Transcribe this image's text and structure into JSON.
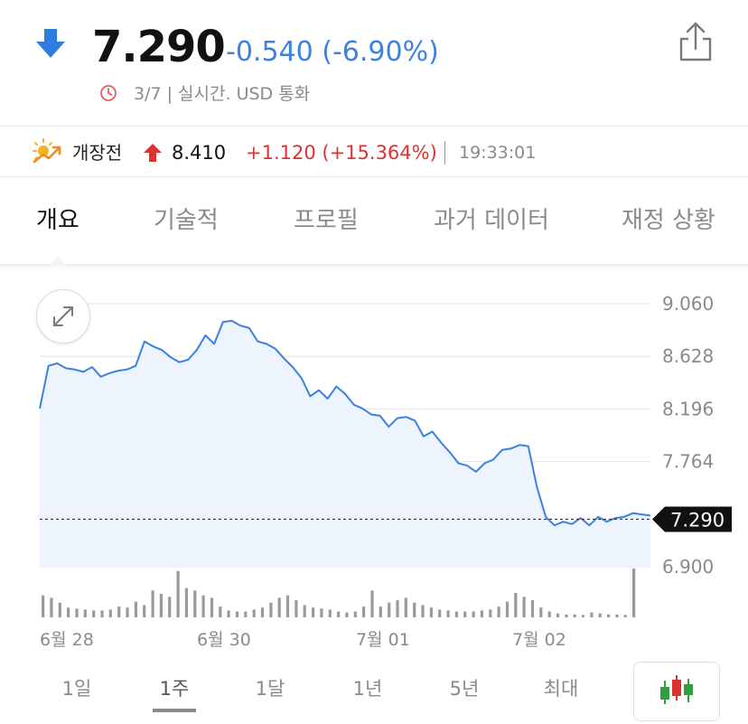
{
  "quote": {
    "price": "7.290",
    "change": "-0.540 (-6.90%)",
    "meta": "3/7 | 실시간. USD 통화",
    "direction_icon": "arrow-down-icon",
    "color_down": "#3b82e0"
  },
  "premarket": {
    "label": "개장전",
    "price": "8.410",
    "change": "+1.120 (+15.364%)",
    "time": "19:33:01",
    "icon": "sunrise-icon",
    "color_up": "#e03131"
  },
  "tabs": [
    {
      "label": "개요",
      "active": true
    },
    {
      "label": "기술적",
      "active": false
    },
    {
      "label": "프로필",
      "active": false
    },
    {
      "label": "과거 데이터",
      "active": false
    },
    {
      "label": "재정 상황",
      "active": false
    }
  ],
  "chart_data": {
    "type": "line",
    "y_ticks": [
      "9.060",
      "8.628",
      "8.196",
      "7.764",
      "6.900"
    ],
    "ylim": [
      6.9,
      9.06
    ],
    "current_value": 7.29,
    "current_label": "7.290",
    "x_labels": [
      "6월 28",
      "6월 30",
      "7월 01",
      "7월 02"
    ],
    "line_color": "#3b82e0",
    "values": [
      8.2,
      8.55,
      8.57,
      8.53,
      8.52,
      8.5,
      8.54,
      8.46,
      8.49,
      8.51,
      8.52,
      8.55,
      8.75,
      8.71,
      8.68,
      8.62,
      8.58,
      8.6,
      8.68,
      8.8,
      8.73,
      8.91,
      8.92,
      8.88,
      8.86,
      8.75,
      8.73,
      8.69,
      8.61,
      8.54,
      8.45,
      8.3,
      8.35,
      8.28,
      8.38,
      8.32,
      8.23,
      8.2,
      8.15,
      8.14,
      8.05,
      8.12,
      8.13,
      8.1,
      7.97,
      8.01,
      7.92,
      7.84,
      7.75,
      7.73,
      7.68,
      7.75,
      7.78,
      7.86,
      7.87,
      7.9,
      7.89,
      7.55,
      7.31,
      7.24,
      7.27,
      7.25,
      7.3,
      7.24,
      7.31,
      7.27,
      7.3,
      7.31,
      7.34,
      7.33,
      7.32
    ],
    "volume": [
      0.45,
      0.4,
      0.3,
      0.2,
      0.18,
      0.16,
      0.14,
      0.14,
      0.16,
      0.22,
      0.2,
      0.32,
      0.25,
      0.55,
      0.48,
      0.42,
      0.95,
      0.6,
      0.55,
      0.45,
      0.4,
      0.22,
      0.14,
      0.12,
      0.12,
      0.16,
      0.2,
      0.3,
      0.4,
      0.45,
      0.35,
      0.25,
      0.2,
      0.18,
      0.16,
      0.12,
      0.1,
      0.12,
      0.22,
      0.55,
      0.22,
      0.3,
      0.35,
      0.4,
      0.3,
      0.25,
      0.2,
      0.16,
      0.14,
      0.12,
      0.12,
      0.12,
      0.14,
      0.16,
      0.22,
      0.32,
      0.5,
      0.42,
      0.35,
      0.2,
      0.12,
      0.08,
      0.06,
      0.06,
      0.05,
      0.1,
      0.08,
      0.06,
      0.06,
      0.05,
      1.0
    ]
  },
  "ranges": [
    {
      "label": "1일",
      "active": false
    },
    {
      "label": "1주",
      "active": true
    },
    {
      "label": "1달",
      "active": false
    },
    {
      "label": "1년",
      "active": false
    },
    {
      "label": "5년",
      "active": false
    },
    {
      "label": "최대",
      "active": false
    }
  ]
}
